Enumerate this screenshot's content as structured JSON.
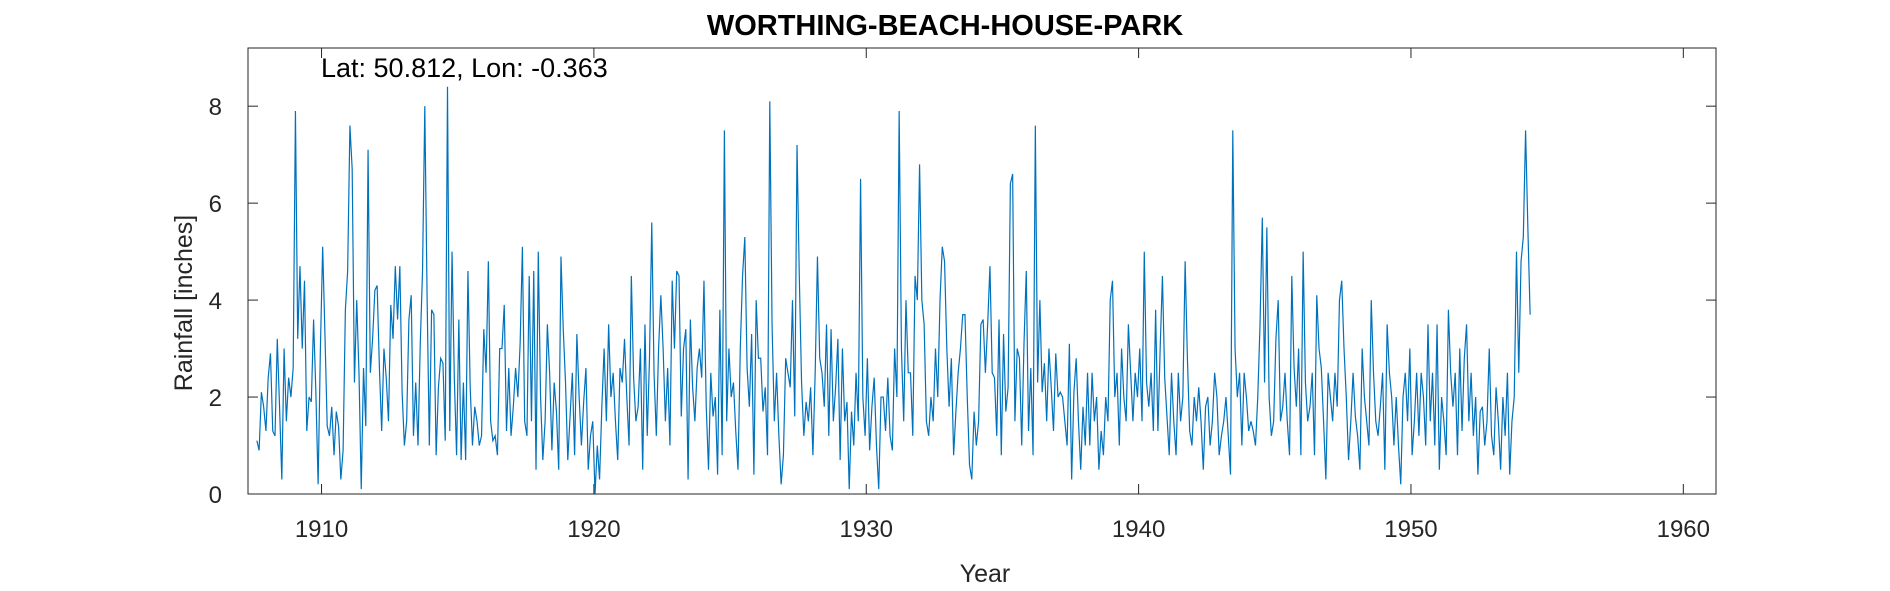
{
  "chart_data": {
    "type": "line",
    "title": "WORTHING-BEACH-HOUSE-PARK",
    "annotation": "Lat: 50.812, Lon: -0.363",
    "xlabel": "Year",
    "ylabel": "Rainfall [inches]",
    "xlim": [
      1907.3,
      1961.2
    ],
    "ylim": [
      0,
      9.2
    ],
    "xticks": [
      1910,
      1920,
      1930,
      1940,
      1950,
      1960
    ],
    "yticks": [
      0,
      2,
      4,
      6,
      8
    ],
    "grid": false,
    "line_color": "#0072BD",
    "series": [
      {
        "x_start": 1907.625,
        "x_step": 0.0833333,
        "values": [
          1.1,
          0.9,
          2.1,
          1.8,
          1.3,
          2.4,
          2.9,
          1.3,
          1.2,
          3.2,
          1.8,
          0.3,
          3.0,
          1.5,
          2.4,
          2.0,
          2.6,
          7.9,
          3.2,
          4.7,
          3.0,
          4.4,
          1.3,
          2.0,
          1.9,
          3.6,
          2.1,
          0.2,
          3.0,
          5.1,
          3.3,
          1.4,
          1.2,
          1.8,
          0.8,
          1.7,
          1.4,
          0.3,
          0.9,
          3.8,
          4.6,
          7.6,
          6.7,
          2.3,
          4.0,
          2.5,
          0.1,
          2.6,
          1.4,
          7.1,
          2.5,
          3.2,
          4.2,
          4.3,
          2.6,
          1.3,
          3.0,
          2.4,
          1.5,
          3.9,
          3.2,
          4.7,
          3.6,
          4.7,
          2.1,
          1.0,
          1.5,
          3.6,
          4.1,
          1.2,
          2.3,
          1.0,
          3.1,
          4.6,
          8.0,
          4.1,
          1.0,
          3.8,
          3.7,
          0.8,
          2.2,
          2.8,
          2.7,
          1.1,
          8.4,
          1.3,
          5.0,
          2.4,
          0.8,
          3.6,
          0.7,
          2.3,
          0.7,
          4.6,
          2.2,
          1.0,
          1.8,
          1.5,
          1.0,
          1.2,
          3.4,
          2.5,
          4.8,
          1.5,
          1.1,
          1.2,
          0.8,
          3.0,
          3.0,
          3.9,
          1.3,
          2.6,
          1.2,
          1.8,
          2.6,
          2.0,
          3.1,
          5.1,
          1.5,
          1.2,
          4.5,
          1.5,
          4.6,
          0.5,
          5.0,
          2.0,
          0.7,
          1.5,
          3.5,
          2.5,
          0.9,
          2.3,
          1.7,
          0.5,
          4.9,
          3.4,
          2.3,
          0.7,
          1.6,
          2.5,
          0.8,
          3.3,
          2.0,
          1.0,
          1.9,
          2.6,
          0.5,
          1.2,
          1.5,
          0.0,
          1.0,
          0.3,
          1.8,
          3.0,
          1.5,
          3.5,
          2.0,
          2.5,
          1.5,
          0.7,
          2.6,
          2.3,
          3.2,
          2.0,
          1.0,
          4.5,
          2.4,
          1.5,
          1.8,
          3.0,
          0.5,
          3.5,
          1.2,
          2.8,
          5.6,
          2.5,
          1.2,
          3.0,
          4.1,
          3.0,
          1.5,
          2.6,
          1.0,
          4.4,
          3.0,
          4.6,
          4.5,
          1.6,
          3.0,
          3.4,
          0.3,
          3.6,
          2.2,
          1.5,
          2.6,
          3.0,
          2.4,
          4.4,
          1.8,
          0.5,
          2.5,
          1.6,
          2.0,
          0.4,
          3.8,
          0.8,
          7.5,
          1.5,
          3.0,
          2.0,
          2.3,
          1.3,
          0.5,
          3.0,
          4.5,
          5.3,
          2.6,
          1.8,
          3.3,
          0.4,
          4.0,
          2.8,
          2.8,
          1.7,
          2.2,
          0.8,
          8.1,
          3.5,
          1.5,
          2.5,
          1.2,
          0.2,
          0.8,
          2.8,
          2.5,
          2.2,
          4.0,
          1.6,
          7.2,
          4.5,
          2.3,
          1.2,
          1.9,
          1.5,
          2.2,
          0.8,
          2.5,
          4.9,
          2.8,
          2.5,
          1.8,
          3.5,
          1.2,
          3.4,
          1.5,
          2.2,
          3.2,
          0.7,
          3.0,
          1.5,
          1.9,
          0.1,
          1.7,
          1.0,
          2.5,
          1.5,
          6.5,
          2.0,
          1.2,
          2.8,
          0.9,
          1.8,
          2.4,
          1.0,
          0.1,
          2.0,
          2.0,
          1.3,
          2.4,
          1.2,
          0.9,
          3.0,
          2.0,
          7.9,
          3.0,
          1.5,
          4.0,
          2.5,
          2.5,
          1.2,
          4.5,
          4.0,
          6.8,
          4.0,
          3.5,
          1.5,
          1.2,
          2.0,
          1.5,
          3.0,
          2.0,
          4.0,
          5.1,
          4.8,
          3.0,
          1.8,
          2.8,
          0.8,
          1.7,
          2.5,
          3.0,
          3.7,
          3.7,
          2.0,
          0.6,
          0.3,
          1.7,
          1.0,
          1.5,
          3.5,
          3.6,
          2.5,
          3.5,
          4.7,
          2.5,
          2.4,
          1.2,
          3.6,
          0.8,
          3.3,
          1.7,
          2.2,
          6.4,
          6.6,
          1.5,
          3.0,
          2.8,
          1.0,
          3.1,
          4.6,
          1.3,
          2.6,
          0.8,
          7.6,
          2.3,
          4.0,
          2.1,
          2.7,
          1.5,
          3.0,
          2.2,
          1.3,
          2.9,
          2.0,
          2.1,
          2.0,
          1.5,
          1.0,
          3.1,
          0.3,
          2.1,
          2.8,
          1.5,
          0.5,
          1.8,
          1.0,
          2.5,
          1.0,
          2.5,
          1.5,
          2.0,
          0.5,
          1.3,
          0.8,
          2.0,
          1.5,
          4.0,
          4.4,
          2.0,
          2.5,
          1.0,
          3.0,
          2.0,
          1.5,
          3.5,
          2.5,
          1.5,
          2.5,
          2.0,
          3.0,
          1.5,
          5.0,
          2.3,
          1.8,
          2.5,
          1.3,
          3.8,
          1.3,
          3.0,
          4.5,
          2.4,
          1.6,
          0.8,
          2.5,
          1.5,
          0.8,
          2.5,
          1.5,
          2.0,
          4.8,
          2.8,
          1.3,
          1.0,
          2.0,
          1.5,
          2.2,
          1.5,
          0.5,
          1.8,
          2.0,
          1.0,
          1.5,
          2.5,
          2.0,
          0.8,
          1.2,
          1.5,
          2.0,
          1.2,
          0.4,
          7.5,
          3.0,
          2.0,
          2.5,
          1.0,
          2.5,
          2.0,
          1.3,
          1.5,
          1.3,
          1.0,
          2.0,
          3.5,
          5.7,
          2.3,
          5.5,
          2.0,
          1.2,
          1.5,
          3.2,
          4.0,
          1.5,
          1.8,
          2.5,
          1.5,
          0.8,
          4.5,
          2.6,
          1.8,
          3.0,
          0.8,
          5.0,
          2.3,
          1.5,
          1.8,
          2.5,
          0.8,
          4.1,
          3.0,
          2.6,
          1.5,
          0.3,
          2.5,
          2.0,
          1.5,
          2.5,
          1.8,
          4.0,
          4.4,
          3.0,
          2.0,
          0.7,
          1.5,
          2.5,
          1.6,
          1.2,
          0.5,
          3.0,
          2.0,
          1.5,
          1.0,
          4.0,
          2.5,
          1.5,
          1.2,
          1.8,
          2.5,
          0.5,
          3.5,
          2.5,
          2.0,
          1.0,
          2.0,
          1.0,
          0.2,
          2.0,
          2.5,
          1.5,
          3.0,
          0.8,
          1.5,
          2.5,
          1.2,
          2.5,
          2.0,
          1.0,
          3.5,
          1.5,
          2.5,
          1.0,
          3.5,
          0.5,
          2.0,
          1.5,
          0.8,
          3.8,
          2.5,
          1.8,
          2.5,
          0.8,
          3.0,
          1.3,
          2.8,
          3.5,
          1.5,
          2.5,
          1.2,
          2.0,
          0.4,
          1.7,
          1.8,
          1.0,
          1.5,
          3.0,
          1.2,
          0.8,
          2.2,
          1.5,
          0.5,
          2.0,
          1.2,
          2.5,
          0.4,
          1.5,
          2.0,
          5.0,
          2.5,
          4.8,
          5.3,
          7.5,
          5.5,
          3.7
        ]
      }
    ]
  }
}
